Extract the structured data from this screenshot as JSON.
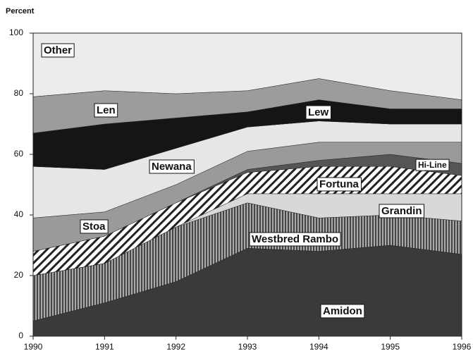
{
  "chart_data": {
    "type": "stacked_area",
    "y_label": "Percent",
    "x": [
      1990,
      1991,
      1992,
      1993,
      1994,
      1995,
      1996
    ],
    "xlim": [
      1990,
      1996
    ],
    "xticks": [
      1990,
      1991,
      1992,
      1993,
      1994,
      1995,
      1996
    ],
    "ylim": [
      0,
      100
    ],
    "yticks": [
      0,
      20,
      40,
      60,
      80,
      100
    ],
    "series": [
      {
        "name": "Amidon",
        "color": "#3a3a3a",
        "values": [
          5,
          11,
          18,
          29,
          28,
          30,
          27
        ]
      },
      {
        "name": "Westbred Rambo",
        "color": "#7a7a7a",
        "values": [
          15,
          13,
          18,
          15,
          11,
          10,
          11
        ]
      },
      {
        "name": "Grandin",
        "color": "#d8d8d8",
        "values": [
          0,
          0,
          0,
          3,
          8,
          7,
          9
        ]
      },
      {
        "name": "Fortuna",
        "color": "#f4f4f4",
        "values": [
          8,
          9,
          8,
          7,
          9,
          9,
          6
        ]
      },
      {
        "name": "Hi-Line",
        "color": "#555555",
        "values": [
          0,
          0,
          0,
          1,
          2,
          4,
          4
        ]
      },
      {
        "name": "Stoa",
        "color": "#9a9a9a",
        "values": [
          11,
          8,
          6,
          6,
          6,
          4,
          7
        ]
      },
      {
        "name": "Newana",
        "color": "#e6e6e6",
        "values": [
          17,
          14,
          12,
          8,
          7,
          6,
          6
        ]
      },
      {
        "name": "Lew",
        "color": "#151515",
        "values": [
          11,
          15,
          10,
          5,
          7,
          5,
          5
        ]
      },
      {
        "name": "Len",
        "color": "#9c9c9c",
        "values": [
          12,
          11,
          8,
          7,
          7,
          6,
          3
        ]
      },
      {
        "name": "Other",
        "color": "#ececec",
        "values": [
          21,
          19,
          20,
          19,
          15,
          19,
          22
        ]
      }
    ]
  }
}
